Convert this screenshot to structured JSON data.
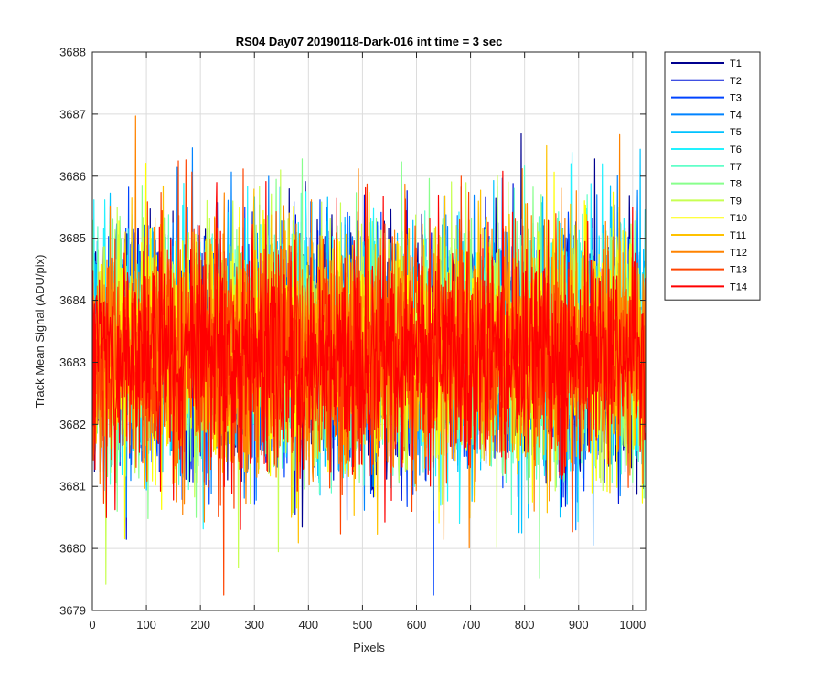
{
  "chart_data": {
    "type": "line",
    "title": "RS04 Day07 20190118-Dark-016 int time = 3 sec",
    "xlabel": "Pixels",
    "ylabel": "Track Mean Signal (ADU/pix)",
    "xlim": [
      0,
      1024
    ],
    "ylim": [
      3679,
      3688
    ],
    "xticks": [
      0,
      100,
      200,
      300,
      400,
      500,
      600,
      700,
      800,
      900,
      1000
    ],
    "yticks": [
      3679,
      3680,
      3681,
      3682,
      3683,
      3684,
      3685,
      3686,
      3687,
      3688
    ],
    "xtick_labels": [
      "0",
      "100",
      "200",
      "300",
      "400",
      "500",
      "600",
      "700",
      "800",
      "900",
      "1000"
    ],
    "ytick_labels": [
      "3679",
      "3680",
      "3681",
      "3682",
      "3683",
      "3684",
      "3685",
      "3686",
      "3687",
      "3688"
    ],
    "grid": true,
    "legend_position": "outside-top-right",
    "series_note": "Each series is dark-frame noise: 1024 samples per track, approx. mean 3683.2 ADU/pix, std approx. 0.95, range approx. 3679.3–3687.8.",
    "series": [
      {
        "name": "T1",
        "color": "#00008f",
        "mean": 3683.25,
        "std": 0.95
      },
      {
        "name": "T2",
        "color": "#0016d8",
        "mean": 3683.25,
        "std": 0.95
      },
      {
        "name": "T3",
        "color": "#0044ff",
        "mean": 3683.25,
        "std": 0.95
      },
      {
        "name": "T4",
        "color": "#0083ff",
        "mean": 3683.25,
        "std": 0.95
      },
      {
        "name": "T5",
        "color": "#00c2ff",
        "mean": 3683.25,
        "std": 0.95
      },
      {
        "name": "T6",
        "color": "#22f2ff",
        "mean": 3683.25,
        "std": 0.95
      },
      {
        "name": "T7",
        "color": "#61ffc8",
        "mean": 3683.25,
        "std": 0.95
      },
      {
        "name": "T8",
        "color": "#88ff8c",
        "mean": 3683.25,
        "std": 0.95
      },
      {
        "name": "T9",
        "color": "#c8ff52",
        "mean": 3683.25,
        "std": 0.95
      },
      {
        "name": "T10",
        "color": "#ffff00",
        "mean": 3683.25,
        "std": 0.95
      },
      {
        "name": "T11",
        "color": "#ffc200",
        "mean": 3683.2,
        "std": 0.95
      },
      {
        "name": "T12",
        "color": "#ff8300",
        "mean": 3683.2,
        "std": 0.95
      },
      {
        "name": "T13",
        "color": "#ff4400",
        "mean": 3683.15,
        "std": 0.95
      },
      {
        "name": "T14",
        "color": "#ff0000",
        "mean": 3683.1,
        "std": 0.9
      }
    ],
    "samples_per_series": 1024
  }
}
